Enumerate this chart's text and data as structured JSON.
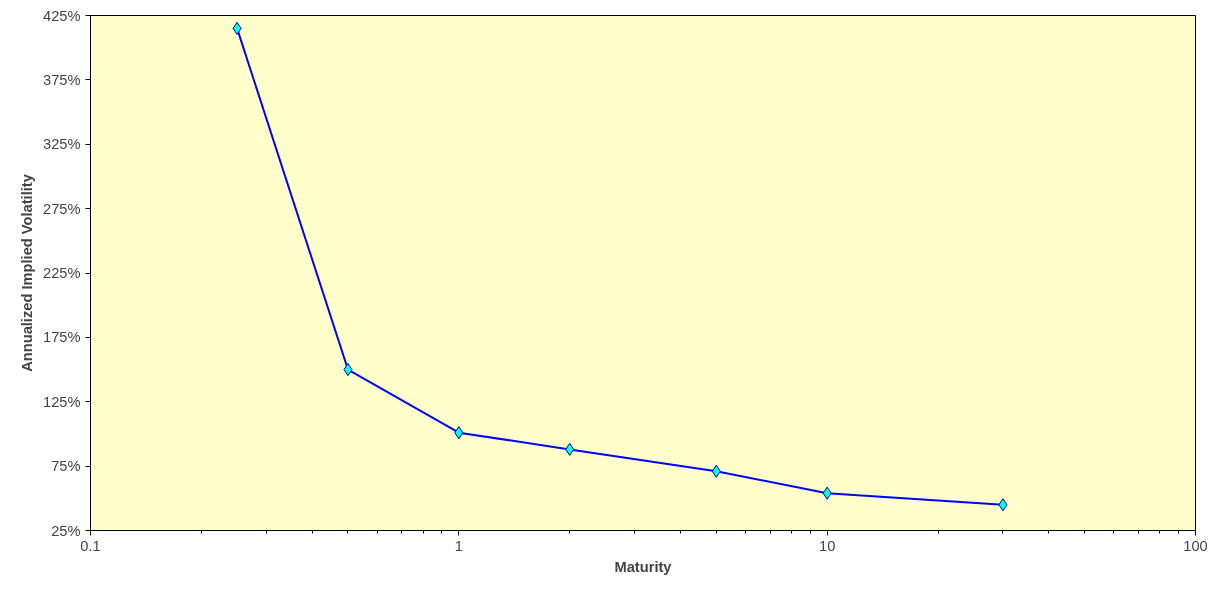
{
  "chart_data": {
    "type": "line",
    "xlabel": "Maturity",
    "ylabel": "Annualized Implied Volatility",
    "x": [
      0.25,
      0.5,
      1,
      2,
      5,
      10,
      30
    ],
    "series": [
      {
        "color": "#0000ff",
        "values": [
          415,
          150,
          101,
          88,
          71,
          54,
          45
        ]
      }
    ],
    "marker": "diamond",
    "line_style": "solid",
    "log": "x",
    "grid": false,
    "xlim": [
      0.1,
      100
    ],
    "xticks": [
      0.1,
      1,
      10,
      100
    ],
    "ylim": [
      25,
      425
    ],
    "yticks": [
      {
        "value": 25,
        "label": "25%"
      },
      {
        "value": 75,
        "label": "75%"
      },
      {
        "value": 125,
        "label": "125%"
      },
      {
        "value": 175,
        "label": "175%"
      },
      {
        "value": 225,
        "label": "225%"
      },
      {
        "value": 275,
        "label": "275%"
      },
      {
        "value": 325,
        "label": "325%"
      },
      {
        "value": 375,
        "label": "375%"
      },
      {
        "value": 425,
        "label": "425%"
      }
    ]
  }
}
